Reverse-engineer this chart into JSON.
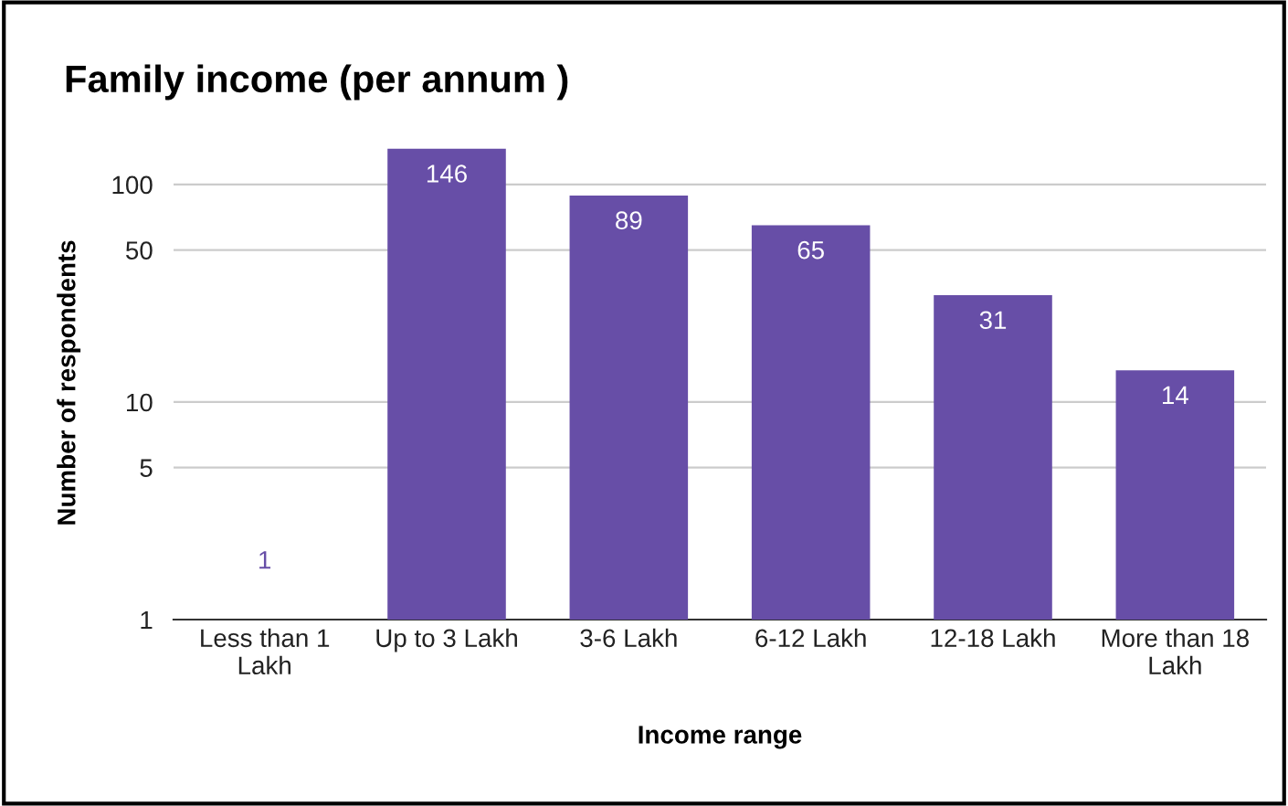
{
  "chart_data": {
    "type": "bar",
    "title": "Family income (per annum )",
    "xlabel": "Income range",
    "ylabel": "Number of respondents",
    "categories": [
      "Less than 1\nLakh",
      "Up to 3 Lakh",
      "3-6 Lakh",
      "6-12 Lakh",
      "12-18 Lakh",
      "More than 18\nLakh"
    ],
    "values": [
      1,
      146,
      89,
      65,
      31,
      14
    ],
    "color": "#674ea7",
    "log": true,
    "ylim": [
      1,
      150
    ],
    "yticks": [
      1,
      5,
      10,
      50,
      100
    ],
    "grid": "y",
    "data_labels": true,
    "legend": false
  }
}
